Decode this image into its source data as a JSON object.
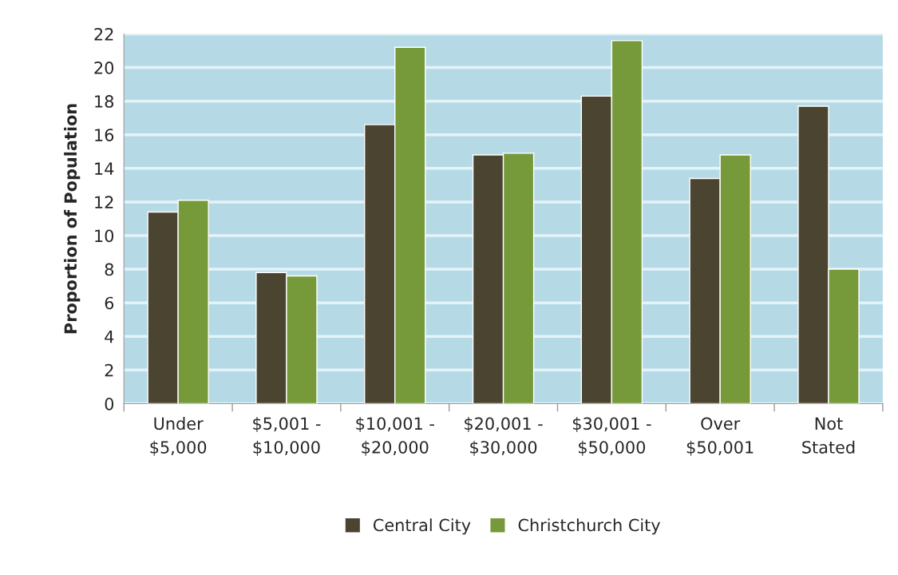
{
  "chart_data": {
    "type": "bar",
    "ylabel": "Proportion of Population",
    "categories": [
      "Under\n$5,000",
      "$5,001 -\n$10,000",
      "$10,001 -\n$20,000",
      "$20,001 -\n$30,000",
      "$30,001 -\n$50,000",
      "Over\n$50,001",
      "Not\nStated"
    ],
    "series": [
      {
        "name": "Central City",
        "color": "#4b4430",
        "values": [
          11.4,
          7.8,
          16.6,
          14.8,
          18.3,
          13.4,
          17.7
        ]
      },
      {
        "name": "Christchurch City",
        "color": "#76993a",
        "values": [
          12.1,
          7.6,
          21.2,
          14.9,
          21.6,
          14.8,
          8.0
        ]
      }
    ],
    "ylim": [
      0,
      22
    ],
    "yticks": [
      0,
      2,
      4,
      6,
      8,
      10,
      12,
      14,
      16,
      18,
      20,
      22
    ],
    "grid": "y",
    "legend": "bottom"
  }
}
